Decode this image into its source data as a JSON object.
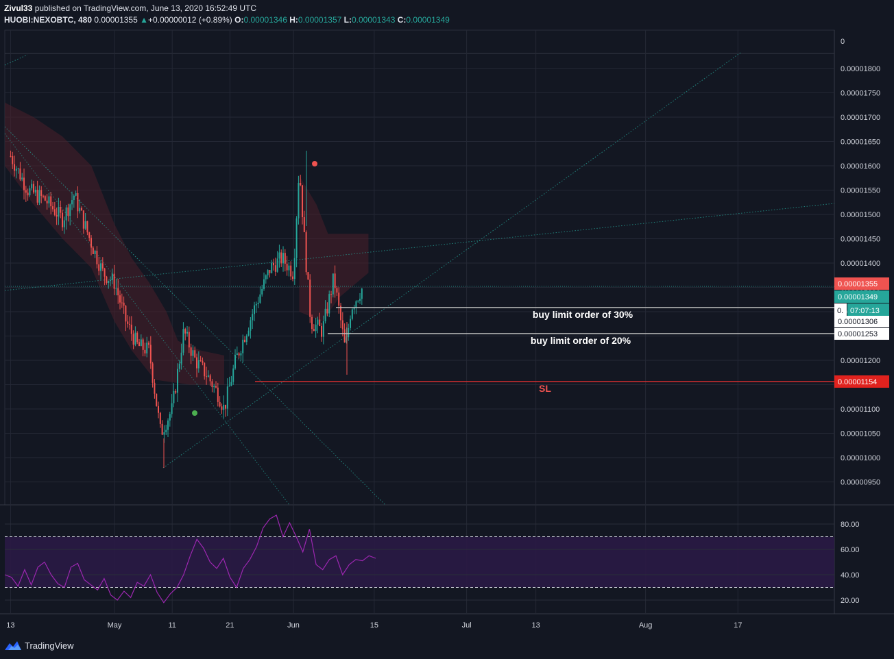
{
  "header": {
    "author": "Zivul33",
    "published_text": "published on TradingView.com, June 13, 2020 16:52:49 UTC",
    "symbol": "HUOBI:NEXOBTC, 480",
    "last": "0.00001355",
    "change_arrow": "▲",
    "change": "+0.00000012 (+0.89%)",
    "o_label": "O:",
    "o_value": "0.00001346",
    "h_label": "H:",
    "h_value": "0.00001357",
    "l_label": "L:",
    "l_value": "0.00001343",
    "c_label": "C:",
    "c_value": "0.00001349"
  },
  "footer": {
    "brand": "TradingView",
    "logo_icon": "tradingview-logo-icon"
  },
  "colors": {
    "background": "#131722",
    "up": "#26a69a",
    "down": "#ef5350",
    "rsi_line": "#9c27b0",
    "rsi_band": "#2a1a45",
    "sl": "#d32f2f",
    "order_line": "#c0c0c0",
    "trendline": "#26a69a"
  },
  "chart_data": [
    {
      "type": "candlestick",
      "ylim": [
        9.1e-06,
        1.84e-05
      ],
      "y_ticks": [
        "0.00000950",
        "0.00001000",
        "0.00001050",
        "0.00001100",
        "0.00001150",
        "0.00001200",
        "0.00001250",
        "0.00001300",
        "0.00001350",
        "0.00001400",
        "0.00001450",
        "0.00001500",
        "0.00001550",
        "0.00001600",
        "0.00001650",
        "0.00001700",
        "0.00001750",
        "0.00001800"
      ],
      "y_tick_values": [
        9.5e-06,
        1e-05,
        1.05e-05,
        1.1e-05,
        1.15e-05,
        1.2e-05,
        1.25e-05,
        1.3e-05,
        1.35e-05,
        1.4e-05,
        1.45e-05,
        1.5e-05,
        1.55e-05,
        1.6e-05,
        1.65e-05,
        1.7e-05,
        1.75e-05,
        1.8e-05
      ],
      "top_tick": "0",
      "x_ticks": [
        "13",
        "May",
        "11",
        "21",
        "Jun",
        "15",
        "Jul",
        "13",
        "Aug",
        "17"
      ],
      "price_path": [
        [
          "Apr 13",
          1.62e-05
        ],
        [
          "Apr 16",
          1.55e-05
        ],
        [
          "Apr 19",
          1.53e-05
        ],
        [
          "Apr 22",
          1.49e-05
        ],
        [
          "Apr 24",
          1.54e-05
        ],
        [
          "Apr 27",
          1.44e-05
        ],
        [
          "Apr 29",
          1.38e-05
        ],
        [
          "May 1",
          1.36e-05
        ],
        [
          "May 3",
          1.28e-05
        ],
        [
          "May 5",
          1.23e-05
        ],
        [
          "May 7",
          1.22e-05
        ],
        [
          "May 9",
          1.05e-05
        ],
        [
          "May 11",
          1.1e-05
        ],
        [
          "May 13",
          1.26e-05
        ],
        [
          "May 15",
          1.2e-05
        ],
        [
          "May 17",
          1.17e-05
        ],
        [
          "May 19",
          1.13e-05
        ],
        [
          "May 20",
          1.1e-05
        ],
        [
          "May 22",
          1.2e-05
        ],
        [
          "May 25",
          1.3e-05
        ],
        [
          "May 28",
          1.39e-05
        ],
        [
          "May 30",
          1.41e-05
        ],
        [
          "Jun 1",
          1.38e-05
        ],
        [
          "Jun 2",
          1.6e-05
        ],
        [
          "Jun 3",
          1.43e-05
        ],
        [
          "Jun 4",
          1.28e-05
        ],
        [
          "Jun 6",
          1.26e-05
        ],
        [
          "Jun 8",
          1.37e-05
        ],
        [
          "Jun 10",
          1.22e-05
        ],
        [
          "Jun 11",
          1.31e-05
        ],
        [
          "Jun 12",
          1.33e-05
        ],
        [
          "Jun 13",
          1.35e-05
        ]
      ],
      "current_price": "0.00001355",
      "close_price": "0.00001349",
      "countdown": "07:07:13",
      "countdown_tick": "0.",
      "order_levels": [
        {
          "price": 1.31e-05,
          "label": "buy limit order of 30%",
          "axis_label": "0.00001306"
        },
        {
          "price": 1.253e-05,
          "label": "buy limit order of 20%",
          "axis_label": "0.00001253"
        }
      ],
      "stop_loss": {
        "price": 1.154e-05,
        "label": "SL",
        "axis_label": "0.00001154"
      }
    },
    {
      "type": "line",
      "name": "",
      "ylim": [
        10,
        90
      ],
      "y_ticks": [
        "20.00",
        "40.00",
        "60.00",
        "80.00"
      ],
      "y_tick_values": [
        20,
        40,
        60,
        80
      ],
      "band": [
        30,
        70
      ],
      "values": [
        40,
        38,
        31,
        44,
        32,
        46,
        50,
        40,
        33,
        30,
        46,
        49,
        36,
        32,
        28,
        37,
        24,
        20,
        27,
        22,
        34,
        31,
        40,
        26,
        18,
        25,
        30,
        40,
        55,
        68,
        61,
        50,
        45,
        53,
        38,
        30,
        45,
        52,
        62,
        77,
        84,
        87,
        70,
        81,
        70,
        58,
        76,
        48,
        44,
        52,
        55,
        40,
        48,
        52,
        51,
        55,
        53
      ]
    }
  ]
}
